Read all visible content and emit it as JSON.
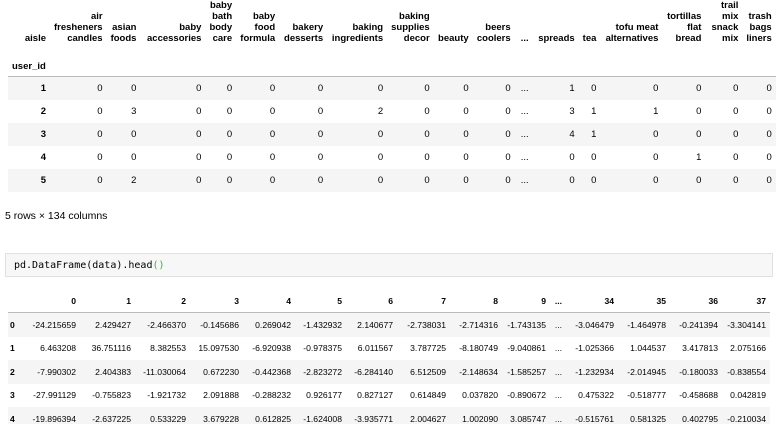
{
  "table1": {
    "columns": [
      "aisle",
      "air fresheners candles",
      "asian foods",
      "baby accessories",
      "baby bath body care",
      "baby food formula",
      "bakery desserts",
      "baking ingredients",
      "baking supplies decor",
      "beauty",
      "beers coolers",
      "...",
      "spreads",
      "tea",
      "tofu meat alternatives",
      "tortillas flat bread",
      "trail mix snack mix",
      "trash bags liners"
    ],
    "index_name": "user_id",
    "rows": [
      [
        "1",
        "0",
        "0",
        "0",
        "0",
        "0",
        "0",
        "0",
        "0",
        "0",
        "0",
        "...",
        "1",
        "0",
        "0",
        "0",
        "0",
        "0"
      ],
      [
        "2",
        "0",
        "3",
        "0",
        "0",
        "0",
        "0",
        "2",
        "0",
        "0",
        "0",
        "...",
        "3",
        "1",
        "1",
        "0",
        "0",
        "0"
      ],
      [
        "3",
        "0",
        "0",
        "0",
        "0",
        "0",
        "0",
        "0",
        "0",
        "0",
        "0",
        "...",
        "4",
        "1",
        "0",
        "0",
        "0",
        "0"
      ],
      [
        "4",
        "0",
        "0",
        "0",
        "0",
        "0",
        "0",
        "0",
        "0",
        "0",
        "0",
        "...",
        "0",
        "0",
        "0",
        "1",
        "0",
        "0"
      ],
      [
        "5",
        "0",
        "2",
        "0",
        "0",
        "0",
        "0",
        "0",
        "0",
        "0",
        "0",
        "...",
        "0",
        "0",
        "0",
        "0",
        "0",
        "0"
      ]
    ],
    "caption": "5 rows × 134 columns"
  },
  "code": {
    "parts": [
      "pd.DataFrame(data).head",
      "()"
    ]
  },
  "table2": {
    "columns": [
      "",
      "0",
      "1",
      "2",
      "3",
      "4",
      "5",
      "6",
      "7",
      "8",
      "9",
      "...",
      "34",
      "35",
      "36",
      "37"
    ],
    "rows": [
      [
        "0",
        "-24.215659",
        "2.429427",
        "-2.466370",
        "-0.145686",
        "0.269042",
        "-1.432932",
        "2.140677",
        "-2.738031",
        "-2.714316",
        "-1.743135",
        "...",
        "-3.046479",
        "-1.464978",
        "-0.241394",
        "-3.304141"
      ],
      [
        "1",
        "6.463208",
        "36.751116",
        "8.382553",
        "15.097530",
        "-6.920938",
        "-0.978375",
        "6.011567",
        "3.787725",
        "-8.180749",
        "-9.040861",
        "...",
        "-1.025366",
        "1.044537",
        "3.417813",
        "2.075166"
      ],
      [
        "2",
        "-7.990302",
        "2.404383",
        "-11.030064",
        "0.672230",
        "-0.442368",
        "-2.823272",
        "-6.284140",
        "6.512509",
        "-2.148634",
        "-1.585257",
        "...",
        "-1.232934",
        "-2.014945",
        "-0.180033",
        "-0.838554"
      ],
      [
        "3",
        "-27.991129",
        "-0.755823",
        "-1.921732",
        "2.091888",
        "-0.288232",
        "0.926177",
        "0.827127",
        "0.614849",
        "0.037820",
        "-0.890672",
        "...",
        "0.475322",
        "-0.518777",
        "-0.458688",
        "0.042819"
      ],
      [
        "4",
        "-19.896394",
        "-2.637225",
        "0.533229",
        "3.679228",
        "0.612825",
        "-1.624008",
        "-3.935771",
        "2.004627",
        "1.002090",
        "3.085747",
        "...",
        "-0.515761",
        "0.581325",
        "0.402795",
        "-0.210034"
      ]
    ]
  }
}
